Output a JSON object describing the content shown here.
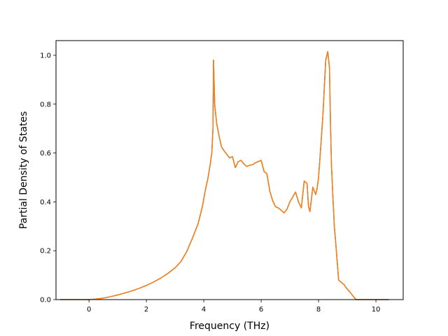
{
  "chart_data": {
    "type": "line",
    "title": "",
    "xlabel": "Frequency (THz)",
    "ylabel": "Partial Density of States",
    "xlim": [
      -1.15,
      10.95
    ],
    "ylim": [
      0.0,
      1.06
    ],
    "xticks": [
      0,
      2,
      4,
      6,
      8,
      10
    ],
    "xtick_labels": [
      "0",
      "2",
      "4",
      "6",
      "8",
      "10"
    ],
    "yticks": [
      0.0,
      0.2,
      0.4,
      0.6,
      0.8,
      1.0
    ],
    "ytick_labels": [
      "0.0",
      "0.2",
      "0.4",
      "0.6",
      "0.8",
      "1.0"
    ],
    "grid": false,
    "legend": "none",
    "series": [
      {
        "color": "#1f77b4",
        "x": [
          -1.0,
          -0.5,
          0.0,
          0.25,
          0.5,
          0.75,
          1.0,
          1.25,
          1.5,
          1.75,
          2.0,
          2.25,
          2.5,
          2.75,
          3.0,
          3.2,
          3.4,
          3.6,
          3.8,
          3.95,
          4.05,
          4.15,
          4.22,
          4.28,
          4.32,
          4.34,
          4.38,
          4.45,
          4.55,
          4.62,
          4.7,
          4.8,
          4.9,
          5.0,
          5.1,
          5.2,
          5.3,
          5.4,
          5.5,
          5.6,
          5.7,
          5.8,
          5.9,
          6.0,
          6.1,
          6.2,
          6.3,
          6.4,
          6.5,
          6.6,
          6.7,
          6.8,
          6.9,
          7.0,
          7.1,
          7.2,
          7.3,
          7.4,
          7.5,
          7.6,
          7.65,
          7.7,
          7.8,
          7.9,
          7.95,
          8.0,
          8.05,
          8.15,
          8.25,
          8.32,
          8.38,
          8.42,
          8.45,
          8.5,
          8.55,
          8.6,
          8.7,
          8.8,
          8.9,
          8.95,
          9.1,
          9.3,
          9.4,
          9.5,
          9.6,
          10.0,
          10.45
        ],
        "y": [
          0.0,
          0.0,
          0.0,
          0.002,
          0.006,
          0.012,
          0.019,
          0.027,
          0.036,
          0.046,
          0.058,
          0.072,
          0.088,
          0.107,
          0.13,
          0.155,
          0.195,
          0.25,
          0.31,
          0.38,
          0.445,
          0.5,
          0.55,
          0.6,
          0.7,
          0.98,
          0.8,
          0.72,
          0.66,
          0.625,
          0.61,
          0.595,
          0.58,
          0.585,
          0.54,
          0.565,
          0.57,
          0.555,
          0.545,
          0.55,
          0.552,
          0.56,
          0.565,
          0.57,
          0.525,
          0.515,
          0.445,
          0.405,
          0.38,
          0.375,
          0.365,
          0.355,
          0.37,
          0.4,
          0.42,
          0.44,
          0.4,
          0.375,
          0.485,
          0.475,
          0.38,
          0.36,
          0.46,
          0.43,
          0.455,
          0.5,
          0.58,
          0.75,
          0.98,
          1.015,
          0.95,
          0.7,
          0.55,
          0.42,
          0.3,
          0.23,
          0.08,
          0.07,
          0.06,
          0.05,
          0.03,
          0.0,
          0.0,
          0.0,
          0.0,
          0.0,
          0.0
        ]
      },
      {
        "color": "#ff7f0e",
        "x": [
          -1.0,
          -0.5,
          0.0,
          0.25,
          0.5,
          0.75,
          1.0,
          1.25,
          1.5,
          1.75,
          2.0,
          2.25,
          2.5,
          2.75,
          3.0,
          3.2,
          3.4,
          3.6,
          3.8,
          3.95,
          4.05,
          4.15,
          4.22,
          4.28,
          4.32,
          4.34,
          4.38,
          4.45,
          4.55,
          4.62,
          4.7,
          4.8,
          4.9,
          5.0,
          5.1,
          5.2,
          5.3,
          5.4,
          5.5,
          5.6,
          5.7,
          5.8,
          5.9,
          6.0,
          6.1,
          6.2,
          6.3,
          6.4,
          6.5,
          6.6,
          6.7,
          6.8,
          6.9,
          7.0,
          7.1,
          7.2,
          7.3,
          7.4,
          7.5,
          7.6,
          7.65,
          7.7,
          7.8,
          7.9,
          7.95,
          8.0,
          8.05,
          8.15,
          8.25,
          8.32,
          8.38,
          8.42,
          8.45,
          8.5,
          8.55,
          8.6,
          8.7,
          8.8,
          8.9,
          8.95,
          9.1,
          9.3,
          9.4,
          9.5,
          9.6,
          10.0,
          10.45
        ],
        "y": [
          0.0,
          0.0,
          0.0,
          0.002,
          0.006,
          0.012,
          0.019,
          0.027,
          0.036,
          0.046,
          0.058,
          0.072,
          0.088,
          0.107,
          0.13,
          0.155,
          0.195,
          0.25,
          0.31,
          0.38,
          0.445,
          0.5,
          0.55,
          0.6,
          0.7,
          0.98,
          0.8,
          0.72,
          0.66,
          0.625,
          0.61,
          0.595,
          0.58,
          0.585,
          0.54,
          0.565,
          0.57,
          0.555,
          0.545,
          0.55,
          0.552,
          0.56,
          0.565,
          0.57,
          0.525,
          0.515,
          0.445,
          0.405,
          0.38,
          0.375,
          0.365,
          0.355,
          0.37,
          0.4,
          0.42,
          0.44,
          0.4,
          0.375,
          0.485,
          0.475,
          0.38,
          0.36,
          0.46,
          0.43,
          0.455,
          0.5,
          0.58,
          0.75,
          0.98,
          1.015,
          0.95,
          0.7,
          0.55,
          0.42,
          0.3,
          0.23,
          0.08,
          0.07,
          0.06,
          0.05,
          0.03,
          0.0,
          0.0,
          0.0,
          0.0,
          0.0,
          0.0
        ]
      }
    ]
  }
}
